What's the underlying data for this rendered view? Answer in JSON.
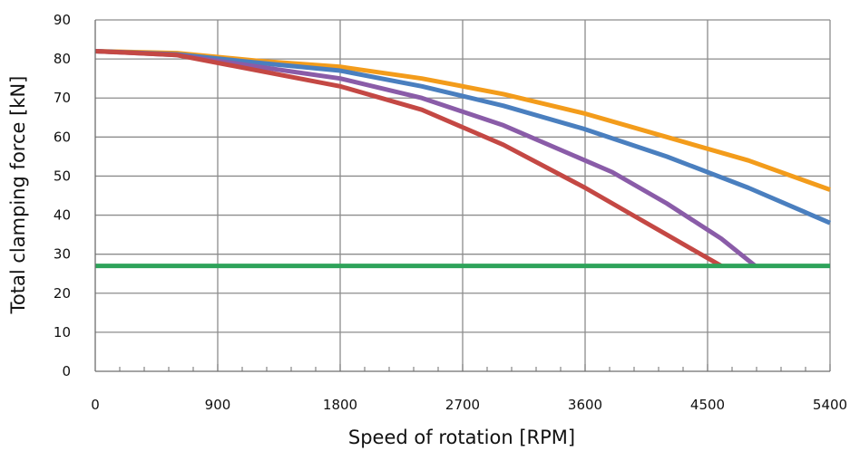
{
  "chart_data": {
    "type": "line",
    "title": "",
    "xlabel": "Speed of rotation [RPM]",
    "ylabel": "Total clamping force [kN]",
    "xlim": [
      0,
      5400
    ],
    "ylim": [
      0,
      90
    ],
    "xticks": [
      0,
      900,
      1800,
      2700,
      3600,
      4500,
      5400
    ],
    "xtick_labels": [
      "0",
      "900",
      "1800",
      "2700",
      "3600",
      "4500",
      "5400"
    ],
    "yticks": [
      0,
      10,
      20,
      30,
      40,
      50,
      60,
      70,
      80,
      90
    ],
    "ytick_labels": [
      "0",
      "10",
      "20",
      "30",
      "40",
      "50",
      "60",
      "70",
      "80",
      "90"
    ],
    "x_minor_step": 180,
    "grid": true,
    "legend": "none",
    "series": [
      {
        "color": "#f39c1b",
        "x": [
          0,
          600,
          1200,
          1800,
          2400,
          3000,
          3600,
          4200,
          4800,
          5400
        ],
        "y": [
          82,
          81.5,
          79.5,
          78,
          75,
          71,
          66,
          60,
          54,
          46.5
        ]
      },
      {
        "color": "#4a7fbf",
        "x": [
          0,
          600,
          1200,
          1800,
          2400,
          3000,
          3600,
          4200,
          4800,
          5400
        ],
        "y": [
          82,
          81.2,
          79,
          77,
          73,
          68,
          62,
          55,
          47,
          38
        ]
      },
      {
        "color": "#8a5ca8",
        "x": [
          0,
          600,
          1200,
          1800,
          2400,
          3000,
          3600,
          3800,
          4200,
          4600,
          4850
        ],
        "y": [
          82,
          81,
          78,
          75,
          70,
          63,
          54,
          51,
          43,
          34,
          27
        ]
      },
      {
        "color": "#c44844",
        "x": [
          0,
          600,
          1200,
          1800,
          2400,
          3000,
          3600,
          4000,
          4400,
          4600
        ],
        "y": [
          82,
          81,
          77,
          73,
          67,
          58,
          47,
          39,
          31,
          27
        ]
      },
      {
        "color": "#2ea35a",
        "x": [
          0,
          5400
        ],
        "y": [
          27,
          27
        ]
      }
    ]
  }
}
